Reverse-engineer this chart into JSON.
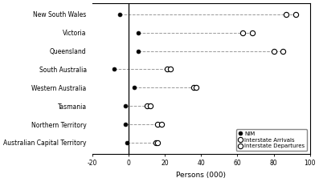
{
  "states": [
    "New South Wales",
    "Victoria",
    "Queensland",
    "South Australia",
    "Western Australia",
    "Tasmania",
    "Northern Territory",
    "Australian Capital Territory"
  ],
  "NIM": [
    -5,
    5,
    5,
    -8,
    3,
    -2,
    -2,
    -1
  ],
  "arrivals": [
    87,
    63,
    80,
    21,
    36,
    10,
    16,
    15
  ],
  "departures": [
    92,
    68,
    85,
    23,
    37,
    12,
    18,
    16
  ],
  "xlim": [
    -20,
    100
  ],
  "xticks": [
    -20,
    0,
    20,
    40,
    60,
    80,
    100
  ],
  "xlabel": "Persons (000)",
  "legend_labels": [
    "NIM",
    "Interstate Arrivals",
    "Interstate Departures"
  ],
  "bg_color": "#ffffff",
  "line_color": "#999999",
  "marker_nim_fc": "#000000",
  "marker_open_fc": "#ffffff",
  "marker_ec": "#000000"
}
